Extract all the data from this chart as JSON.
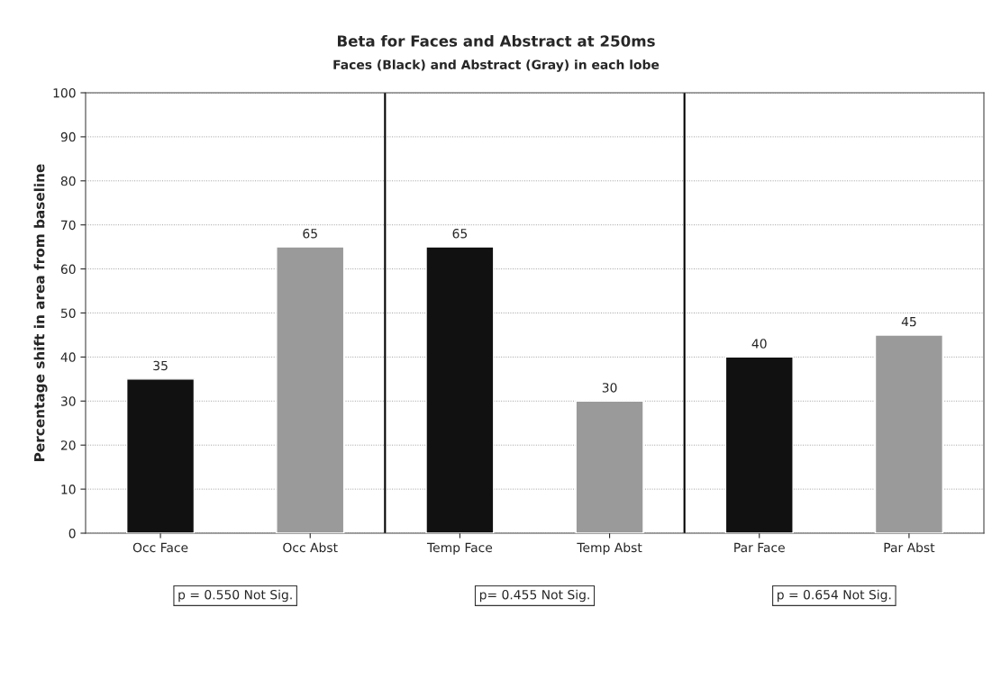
{
  "chart_data": {
    "type": "bar",
    "title": "Beta for Faces and Abstract at 250ms",
    "subtitle": "Faces (Black) and Abstract (Gray) in each lobe",
    "ylabel": "Percentage shift in area from baseline",
    "categories": [
      "Occ Face",
      "Occ Abst",
      "Temp Face",
      "Temp Abst",
      "Par Face",
      "Par Abst"
    ],
    "values": [
      35,
      65,
      65,
      30,
      40,
      45
    ],
    "colors": [
      "#111111",
      "#9a9a9a",
      "#111111",
      "#9a9a9a",
      "#111111",
      "#9a9a9a"
    ],
    "ylim": [
      0,
      100
    ],
    "yticks": [
      0,
      10,
      20,
      30,
      40,
      50,
      60,
      70,
      80,
      90,
      100
    ],
    "grid": "y",
    "data_labels": true,
    "annotations": [
      "p = 0.550 Not Sig.",
      "p= 0.455 Not Sig.",
      "p = 0.654 Not Sig."
    ]
  }
}
